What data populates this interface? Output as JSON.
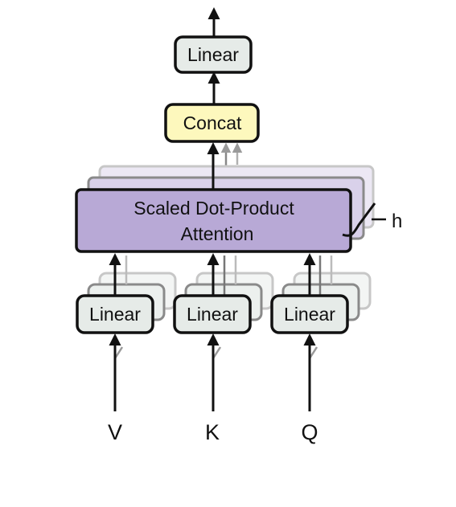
{
  "diagram": {
    "output_linear": {
      "label": "Linear",
      "fill": "#e6ebe8"
    },
    "concat": {
      "label": "Concat",
      "fill": "#fdf8bd"
    },
    "attention": {
      "line1": "Scaled Dot-Product",
      "line2": "Attention",
      "fill": "#b8a9d6"
    },
    "heads_label": "h",
    "input_linear_v": {
      "label": "Linear",
      "fill": "#e6ebe8"
    },
    "input_linear_k": {
      "label": "Linear",
      "fill": "#e6ebe8"
    },
    "input_linear_q": {
      "label": "Linear",
      "fill": "#e6ebe8"
    },
    "inputs": {
      "v": "V",
      "k": "K",
      "q": "Q"
    },
    "stroke_color": "#111111"
  }
}
